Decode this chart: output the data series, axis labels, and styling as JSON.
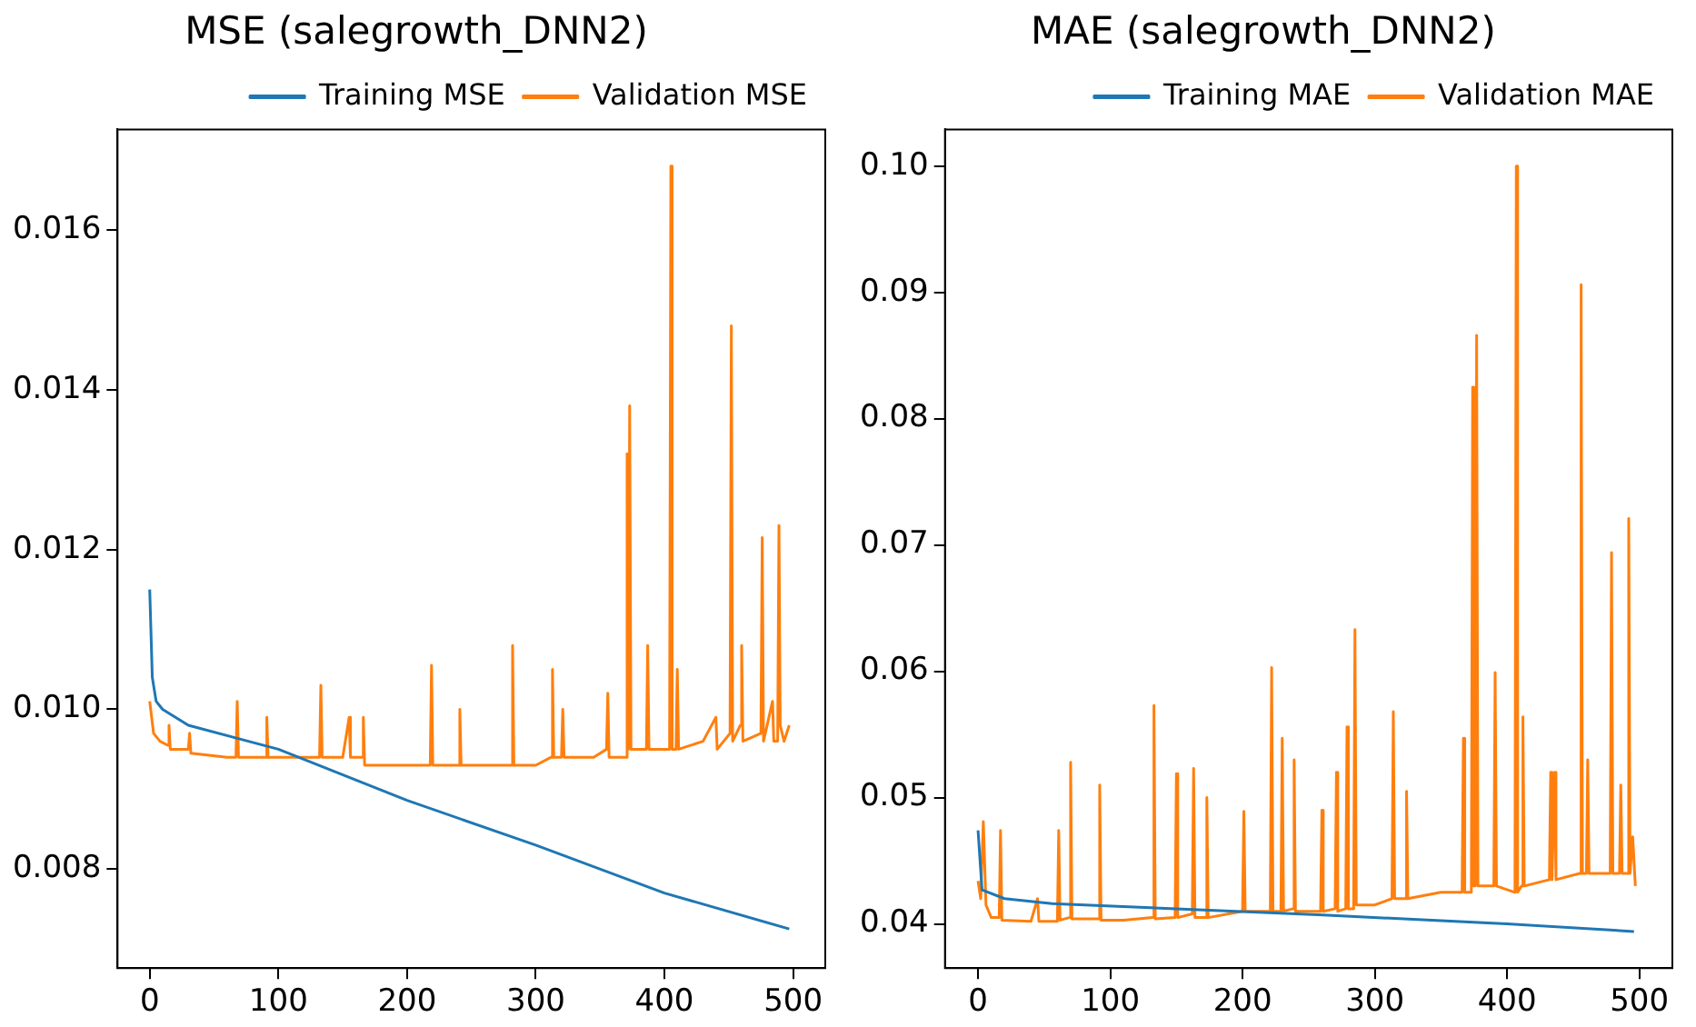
{
  "chart_data": [
    {
      "type": "line",
      "title": "MSE (salegrowth_DNN2)",
      "xlim": [
        -25,
        525
      ],
      "xticks": [
        0,
        100,
        200,
        300,
        400,
        500
      ],
      "ylim": [
        0.00676,
        0.01726
      ],
      "yticks": [
        {
          "value": 0.008,
          "label": "0.008"
        },
        {
          "value": 0.01,
          "label": "0.010"
        },
        {
          "value": 0.012,
          "label": "0.012"
        },
        {
          "value": 0.014,
          "label": "0.014"
        },
        {
          "value": 0.016,
          "label": "0.016"
        }
      ],
      "grid": false,
      "legend": "top right",
      "marker": "none",
      "series": [
        {
          "name": "Training MSE",
          "color": "#1f77b4",
          "x": [
            0,
            2,
            5,
            10,
            30,
            100,
            200,
            300,
            400,
            497
          ],
          "values": [
            0.0115,
            0.0104,
            0.0101,
            0.01,
            0.0098,
            0.0095,
            0.00886,
            0.0083,
            0.0077,
            0.00725
          ]
        },
        {
          "name": "Validation MSE",
          "color": "#ff7f0e",
          "x": [
            0,
            3,
            8,
            14,
            15,
            16,
            30,
            31,
            32,
            60,
            67,
            68,
            69,
            90,
            91,
            92,
            120,
            132,
            133,
            134,
            150,
            155,
            156,
            165,
            166,
            167,
            200,
            218,
            219,
            220,
            240,
            241,
            242,
            270,
            281,
            282,
            283,
            300,
            312,
            313,
            314,
            320,
            321,
            322,
            345,
            355,
            356,
            357,
            370,
            371,
            372,
            373,
            374,
            386,
            387,
            388,
            404,
            405,
            406,
            409,
            410,
            411,
            430,
            440,
            441,
            451,
            452,
            453,
            459,
            460,
            461,
            475,
            476,
            477,
            484,
            485,
            488,
            489,
            490,
            493,
            497
          ],
          "values": [
            0.0101,
            0.0097,
            0.0096,
            0.00955,
            0.0098,
            0.0095,
            0.0095,
            0.0097,
            0.00945,
            0.0094,
            0.0094,
            0.0101,
            0.0094,
            0.0094,
            0.0099,
            0.0094,
            0.0094,
            0.0094,
            0.0103,
            0.0094,
            0.0094,
            0.0099,
            0.0094,
            0.0094,
            0.0099,
            0.0093,
            0.0093,
            0.0093,
            0.01055,
            0.0093,
            0.0093,
            0.01,
            0.0093,
            0.0093,
            0.0093,
            0.0108,
            0.0093,
            0.0093,
            0.0094,
            0.0105,
            0.0094,
            0.0094,
            0.01,
            0.0094,
            0.0094,
            0.0095,
            0.0102,
            0.0094,
            0.0094,
            0.0132,
            0.0095,
            0.0138,
            0.0095,
            0.0095,
            0.0108,
            0.0095,
            0.0095,
            0.0168,
            0.0095,
            0.0095,
            0.0105,
            0.0095,
            0.0096,
            0.0099,
            0.0095,
            0.0097,
            0.0148,
            0.0096,
            0.0098,
            0.0108,
            0.0096,
            0.0097,
            0.01215,
            0.0096,
            0.0101,
            0.0096,
            0.0096,
            0.0123,
            0.0098,
            0.0096,
            0.0098
          ]
        }
      ]
    },
    {
      "type": "line",
      "title": "MAE (salegrowth_DNN2)",
      "xlim": [
        -25,
        525
      ],
      "xticks": [
        0,
        100,
        200,
        300,
        400,
        500
      ],
      "ylim": [
        0.0365,
        0.1029
      ],
      "yticks": [
        {
          "value": 0.04,
          "label": "0.04"
        },
        {
          "value": 0.05,
          "label": "0.05"
        },
        {
          "value": 0.06,
          "label": "0.06"
        },
        {
          "value": 0.07,
          "label": "0.07"
        },
        {
          "value": 0.08,
          "label": "0.08"
        },
        {
          "value": 0.09,
          "label": "0.09"
        },
        {
          "value": 0.1,
          "label": "0.10"
        }
      ],
      "grid": false,
      "legend": "top right",
      "marker": "none",
      "series": [
        {
          "name": "Training MAE",
          "color": "#1f77b4",
          "x": [
            0,
            3,
            20,
            56,
            150,
            261,
            400,
            496
          ],
          "values": [
            0.0474,
            0.0427,
            0.042,
            0.0416,
            0.0412,
            0.0407,
            0.04,
            0.0394
          ]
        },
        {
          "name": "Validation MAE",
          "color": "#ff7f0e",
          "x": [
            0,
            2,
            4,
            6,
            10,
            16,
            17,
            18,
            40,
            45,
            46,
            60,
            61,
            62,
            69,
            70,
            71,
            91,
            92,
            93,
            110,
            132,
            133,
            134,
            149,
            150,
            151,
            162,
            163,
            164,
            172,
            173,
            174,
            200,
            201,
            202,
            221,
            222,
            223,
            229,
            230,
            231,
            238,
            239,
            240,
            259,
            260,
            261,
            270,
            271,
            272,
            278,
            279,
            280,
            284,
            285,
            286,
            300,
            313,
            314,
            315,
            323,
            324,
            325,
            350,
            366,
            367,
            368,
            373,
            374,
            375,
            376,
            377,
            378,
            390,
            391,
            392,
            406,
            407,
            408,
            411,
            412,
            413,
            432,
            433,
            434,
            436,
            437,
            455,
            456,
            457,
            460,
            461,
            462,
            478,
            479,
            480,
            485,
            486,
            487,
            491,
            492,
            493,
            495,
            497
          ],
          "values": [
            0.0434,
            0.042,
            0.0481,
            0.0415,
            0.0405,
            0.0405,
            0.0474,
            0.0403,
            0.0402,
            0.042,
            0.0402,
            0.0402,
            0.0474,
            0.0403,
            0.0405,
            0.0528,
            0.0404,
            0.0404,
            0.051,
            0.0403,
            0.0403,
            0.0405,
            0.0573,
            0.0404,
            0.0405,
            0.0519,
            0.0405,
            0.0408,
            0.0523,
            0.0405,
            0.0405,
            0.05,
            0.0405,
            0.041,
            0.0489,
            0.041,
            0.041,
            0.0603,
            0.041,
            0.041,
            0.0547,
            0.041,
            0.0412,
            0.053,
            0.041,
            0.041,
            0.049,
            0.041,
            0.0412,
            0.052,
            0.041,
            0.0412,
            0.0556,
            0.0412,
            0.0412,
            0.0633,
            0.0415,
            0.0415,
            0.042,
            0.0568,
            0.042,
            0.042,
            0.0505,
            0.042,
            0.0425,
            0.0425,
            0.0547,
            0.0425,
            0.0425,
            0.0825,
            0.043,
            0.043,
            0.0866,
            0.043,
            0.043,
            0.0599,
            0.043,
            0.0425,
            0.1,
            0.0425,
            0.043,
            0.0564,
            0.043,
            0.0435,
            0.052,
            0.0435,
            0.052,
            0.0435,
            0.044,
            0.0906,
            0.044,
            0.044,
            0.053,
            0.044,
            0.044,
            0.0694,
            0.044,
            0.044,
            0.051,
            0.044,
            0.044,
            0.0721,
            0.044,
            0.0469,
            0.043
          ]
        }
      ]
    }
  ]
}
